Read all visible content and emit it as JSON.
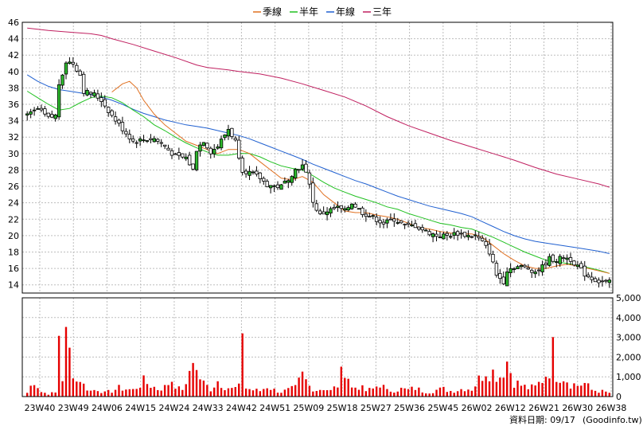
{
  "chart_data": {
    "type": "candlestick",
    "legend": [
      {
        "name": "季線",
        "color": "#e07020"
      },
      {
        "name": "半年",
        "color": "#20c020"
      },
      {
        "name": "年線",
        "color": "#2060d0"
      },
      {
        "name": "三年",
        "color": "#c02060"
      }
    ],
    "legend_position": "top-center",
    "price_axis": {
      "side": "left",
      "range": [
        13,
        46
      ],
      "ticks": [
        14,
        16,
        18,
        20,
        22,
        24,
        26,
        28,
        30,
        32,
        34,
        36,
        38,
        40,
        42,
        44,
        46
      ]
    },
    "volume_axis": {
      "side": "right",
      "range": [
        0,
        5000
      ],
      "ticks": [
        "0",
        "1,000",
        "2,000",
        "3,000",
        "4,000",
        "5,000"
      ]
    },
    "x_labels": [
      "23W40",
      "23W49",
      "24W06",
      "24W15",
      "24W24",
      "24W33",
      "24W42",
      "24W51",
      "25W09",
      "25W18",
      "25W27",
      "25W36",
      "25W45",
      "26W02",
      "26W12",
      "26W21",
      "26W30",
      "26W38"
    ],
    "grid": true,
    "up_color": "#2db82d",
    "down_color": "#ffffff",
    "volume_color": "#e60000",
    "close_anchors": [
      [
        0,
        34.6
      ],
      [
        3,
        35.4
      ],
      [
        6,
        34.3
      ],
      [
        8,
        34.6
      ],
      [
        9,
        38.5
      ],
      [
        11,
        41.2
      ],
      [
        13,
        41.0
      ],
      [
        15,
        39.6
      ],
      [
        16,
        37.6
      ],
      [
        19,
        37.2
      ],
      [
        21,
        36.5
      ],
      [
        24,
        34.6
      ],
      [
        27,
        33.0
      ],
      [
        30,
        31.5
      ],
      [
        33,
        31.7
      ],
      [
        36,
        31.8
      ],
      [
        39,
        30.9
      ],
      [
        42,
        29.6
      ],
      [
        45,
        29.5
      ],
      [
        47,
        28.0
      ],
      [
        48,
        30.5
      ],
      [
        50,
        31.6
      ],
      [
        52,
        30.2
      ],
      [
        54,
        30.9
      ],
      [
        57,
        33.0
      ],
      [
        59,
        31.5
      ],
      [
        61,
        28.0
      ],
      [
        64,
        27.5
      ],
      [
        66,
        27.0
      ],
      [
        68,
        26.2
      ],
      [
        70,
        26.0
      ],
      [
        72,
        26.0
      ],
      [
        74,
        27.0
      ],
      [
        76,
        28.0
      ],
      [
        78,
        28.5
      ],
      [
        80,
        26.5
      ],
      [
        81,
        24.0
      ],
      [
        83,
        22.5
      ],
      [
        85,
        23.0
      ],
      [
        88,
        23.4
      ],
      [
        90,
        23.0
      ],
      [
        92,
        24.0
      ],
      [
        95,
        22.8
      ],
      [
        98,
        22.2
      ],
      [
        101,
        21.5
      ],
      [
        104,
        22.0
      ],
      [
        107,
        21.2
      ],
      [
        110,
        21.2
      ],
      [
        113,
        20.5
      ],
      [
        116,
        20.0
      ],
      [
        119,
        20.0
      ],
      [
        122,
        20.3
      ],
      [
        125,
        20.0
      ],
      [
        127,
        20.0
      ],
      [
        129,
        19.2
      ],
      [
        131,
        18.0
      ],
      [
        133,
        15.2
      ],
      [
        135,
        14.4
      ],
      [
        136,
        15.8
      ],
      [
        138,
        16.2
      ],
      [
        140,
        16.2
      ],
      [
        142,
        16.0
      ],
      [
        144,
        15.6
      ],
      [
        146,
        16.2
      ],
      [
        148,
        17.2
      ],
      [
        150,
        17.0
      ],
      [
        152,
        17.4
      ],
      [
        154,
        17.1
      ],
      [
        156,
        16.3
      ],
      [
        158,
        15.3
      ],
      [
        160,
        14.8
      ],
      [
        162,
        14.4
      ],
      [
        165,
        14.3
      ]
    ],
    "volume_anchors": [
      [
        0,
        200
      ],
      [
        2,
        900
      ],
      [
        4,
        250
      ],
      [
        6,
        150
      ],
      [
        8,
        200
      ],
      [
        9,
        3500
      ],
      [
        10,
        1000
      ],
      [
        11,
        3000
      ],
      [
        12,
        2300
      ],
      [
        13,
        1500
      ],
      [
        14,
        800
      ],
      [
        15,
        1000
      ],
      [
        16,
        600
      ],
      [
        18,
        300
      ],
      [
        20,
        400
      ],
      [
        22,
        200
      ],
      [
        24,
        300
      ],
      [
        26,
        450
      ],
      [
        28,
        400
      ],
      [
        30,
        350
      ],
      [
        33,
        800
      ],
      [
        35,
        600
      ],
      [
        37,
        400
      ],
      [
        39,
        500
      ],
      [
        41,
        900
      ],
      [
        43,
        400
      ],
      [
        45,
        500
      ],
      [
        47,
        2300
      ],
      [
        48,
        1300
      ],
      [
        50,
        700
      ],
      [
        52,
        400
      ],
      [
        54,
        850
      ],
      [
        56,
        550
      ],
      [
        58,
        400
      ],
      [
        60,
        500
      ],
      [
        61,
        3950
      ],
      [
        62,
        450
      ],
      [
        64,
        350
      ],
      [
        66,
        300
      ],
      [
        68,
        550
      ],
      [
        70,
        350
      ],
      [
        72,
        250
      ],
      [
        74,
        350
      ],
      [
        76,
        450
      ],
      [
        78,
        1100
      ],
      [
        80,
        550
      ],
      [
        82,
        350
      ],
      [
        84,
        450
      ],
      [
        86,
        300
      ],
      [
        88,
        600
      ],
      [
        90,
        1700
      ],
      [
        92,
        450
      ],
      [
        94,
        550
      ],
      [
        96,
        300
      ],
      [
        98,
        400
      ],
      [
        100,
        700
      ],
      [
        102,
        300
      ],
      [
        104,
        350
      ],
      [
        106,
        400
      ],
      [
        108,
        350
      ],
      [
        110,
        450
      ],
      [
        112,
        300
      ],
      [
        114,
        250
      ],
      [
        116,
        350
      ],
      [
        118,
        400
      ],
      [
        120,
        300
      ],
      [
        122,
        350
      ],
      [
        124,
        450
      ],
      [
        126,
        400
      ],
      [
        128,
        900
      ],
      [
        130,
        1500
      ],
      [
        132,
        1300
      ],
      [
        134,
        1100
      ],
      [
        136,
        1900
      ],
      [
        138,
        800
      ],
      [
        140,
        600
      ],
      [
        142,
        450
      ],
      [
        144,
        500
      ],
      [
        146,
        900
      ],
      [
        148,
        1500
      ],
      [
        149,
        2400
      ],
      [
        150,
        1200
      ],
      [
        152,
        1100
      ],
      [
        154,
        700
      ],
      [
        156,
        600
      ],
      [
        158,
        700
      ],
      [
        160,
        350
      ],
      [
        162,
        300
      ],
      [
        165,
        200
      ]
    ],
    "ma_quarter": [
      [
        24,
        37.5
      ],
      [
        27,
        38.5
      ],
      [
        29,
        38.8
      ],
      [
        31,
        38.0
      ],
      [
        33,
        36.5
      ],
      [
        36,
        34.8
      ],
      [
        39,
        33.5
      ],
      [
        42,
        32.5
      ],
      [
        45,
        31.5
      ],
      [
        48,
        31.0
      ],
      [
        51,
        30.5
      ],
      [
        54,
        30.0
      ],
      [
        57,
        30.5
      ],
      [
        60,
        30.5
      ],
      [
        63,
        30.0
      ],
      [
        66,
        29.0
      ],
      [
        69,
        28.0
      ],
      [
        72,
        27.0
      ],
      [
        75,
        26.8
      ],
      [
        78,
        27.2
      ],
      [
        81,
        26.5
      ],
      [
        84,
        25.0
      ],
      [
        87,
        24.0
      ],
      [
        90,
        23.0
      ],
      [
        93,
        22.8
      ],
      [
        96,
        22.8
      ],
      [
        99,
        22.5
      ],
      [
        102,
        22.3
      ],
      [
        105,
        22.0
      ],
      [
        108,
        21.5
      ],
      [
        111,
        21.0
      ],
      [
        114,
        20.8
      ],
      [
        117,
        20.5
      ],
      [
        120,
        20.3
      ],
      [
        123,
        20.2
      ],
      [
        126,
        20.2
      ],
      [
        129,
        19.8
      ],
      [
        132,
        18.8
      ],
      [
        135,
        17.8
      ],
      [
        138,
        17.0
      ],
      [
        141,
        16.3
      ],
      [
        144,
        16.0
      ],
      [
        147,
        16.0
      ],
      [
        150,
        16.3
      ],
      [
        153,
        16.5
      ],
      [
        156,
        16.3
      ],
      [
        159,
        16.0
      ],
      [
        162,
        15.7
      ],
      [
        165,
        15.4
      ]
    ],
    "ma_half": [
      [
        0,
        37.6
      ],
      [
        3,
        36.8
      ],
      [
        6,
        36.0
      ],
      [
        9,
        35.3
      ],
      [
        12,
        35.5
      ],
      [
        15,
        36.2
      ],
      [
        18,
        36.8
      ],
      [
        21,
        37.0
      ],
      [
        24,
        36.8
      ],
      [
        27,
        36.2
      ],
      [
        30,
        35.3
      ],
      [
        33,
        34.5
      ],
      [
        36,
        33.5
      ],
      [
        39,
        32.8
      ],
      [
        42,
        32.0
      ],
      [
        45,
        31.3
      ],
      [
        48,
        30.7
      ],
      [
        51,
        30.2
      ],
      [
        54,
        29.8
      ],
      [
        57,
        29.8
      ],
      [
        60,
        30.0
      ],
      [
        63,
        30.0
      ],
      [
        66,
        29.6
      ],
      [
        69,
        29.0
      ],
      [
        72,
        28.5
      ],
      [
        75,
        28.2
      ],
      [
        78,
        28.0
      ],
      [
        81,
        27.3
      ],
      [
        84,
        26.5
      ],
      [
        87,
        25.8
      ],
      [
        90,
        25.3
      ],
      [
        93,
        24.8
      ],
      [
        96,
        24.4
      ],
      [
        99,
        24.0
      ],
      [
        102,
        23.5
      ],
      [
        105,
        23.2
      ],
      [
        108,
        22.7
      ],
      [
        111,
        22.3
      ],
      [
        114,
        21.9
      ],
      [
        117,
        21.5
      ],
      [
        120,
        21.3
      ],
      [
        123,
        21.0
      ],
      [
        126,
        20.8
      ],
      [
        129,
        20.3
      ],
      [
        132,
        19.8
      ],
      [
        135,
        19.2
      ],
      [
        138,
        18.6
      ],
      [
        141,
        18.0
      ],
      [
        144,
        17.5
      ],
      [
        147,
        17.0
      ],
      [
        150,
        16.8
      ],
      [
        153,
        16.6
      ],
      [
        156,
        16.4
      ],
      [
        159,
        16.1
      ],
      [
        162,
        15.8
      ],
      [
        165,
        15.4
      ]
    ],
    "ma_year": [
      [
        0,
        39.6
      ],
      [
        3,
        38.8
      ],
      [
        6,
        38.2
      ],
      [
        9,
        37.8
      ],
      [
        12,
        37.6
      ],
      [
        15,
        37.4
      ],
      [
        18,
        37.2
      ],
      [
        21,
        36.9
      ],
      [
        24,
        36.5
      ],
      [
        27,
        36.0
      ],
      [
        30,
        35.4
      ],
      [
        33,
        34.9
      ],
      [
        36,
        34.5
      ],
      [
        39,
        34.1
      ],
      [
        42,
        33.8
      ],
      [
        45,
        33.5
      ],
      [
        48,
        33.3
      ],
      [
        51,
        33.1
      ],
      [
        54,
        32.8
      ],
      [
        57,
        32.5
      ],
      [
        60,
        32.2
      ],
      [
        63,
        31.8
      ],
      [
        66,
        31.3
      ],
      [
        69,
        30.8
      ],
      [
        72,
        30.3
      ],
      [
        75,
        29.8
      ],
      [
        78,
        29.3
      ],
      [
        81,
        28.7
      ],
      [
        84,
        28.2
      ],
      [
        87,
        27.7
      ],
      [
        90,
        27.2
      ],
      [
        93,
        26.7
      ],
      [
        96,
        26.3
      ],
      [
        99,
        25.8
      ],
      [
        102,
        25.3
      ],
      [
        105,
        24.8
      ],
      [
        108,
        24.4
      ],
      [
        111,
        24.0
      ],
      [
        114,
        23.6
      ],
      [
        117,
        23.3
      ],
      [
        120,
        23.0
      ],
      [
        123,
        22.7
      ],
      [
        126,
        22.3
      ],
      [
        129,
        21.7
      ],
      [
        132,
        21.1
      ],
      [
        135,
        20.5
      ],
      [
        138,
        20.0
      ],
      [
        141,
        19.6
      ],
      [
        144,
        19.3
      ],
      [
        147,
        19.1
      ],
      [
        150,
        18.9
      ],
      [
        153,
        18.7
      ],
      [
        156,
        18.5
      ],
      [
        159,
        18.3
      ],
      [
        162,
        18.1
      ],
      [
        165,
        17.8
      ]
    ],
    "ma_three_year": [
      [
        0,
        45.3
      ],
      [
        6,
        45.0
      ],
      [
        12,
        44.8
      ],
      [
        18,
        44.6
      ],
      [
        21,
        44.4
      ],
      [
        24,
        44.0
      ],
      [
        30,
        43.3
      ],
      [
        36,
        42.5
      ],
      [
        42,
        41.7
      ],
      [
        48,
        40.8
      ],
      [
        51,
        40.5
      ],
      [
        57,
        40.2
      ],
      [
        60,
        40.0
      ],
      [
        66,
        39.7
      ],
      [
        72,
        39.2
      ],
      [
        78,
        38.5
      ],
      [
        84,
        37.7
      ],
      [
        90,
        36.9
      ],
      [
        96,
        35.8
      ],
      [
        102,
        34.5
      ],
      [
        108,
        33.4
      ],
      [
        114,
        32.5
      ],
      [
        120,
        31.6
      ],
      [
        126,
        30.8
      ],
      [
        132,
        30.0
      ],
      [
        138,
        29.2
      ],
      [
        144,
        28.3
      ],
      [
        150,
        27.5
      ],
      [
        156,
        26.9
      ],
      [
        162,
        26.3
      ],
      [
        165,
        25.9
      ]
    ],
    "num_bars": 166
  },
  "footer": {
    "date_label": "資料日期: 09/17",
    "source": "(Goodinfo.tw)"
  }
}
